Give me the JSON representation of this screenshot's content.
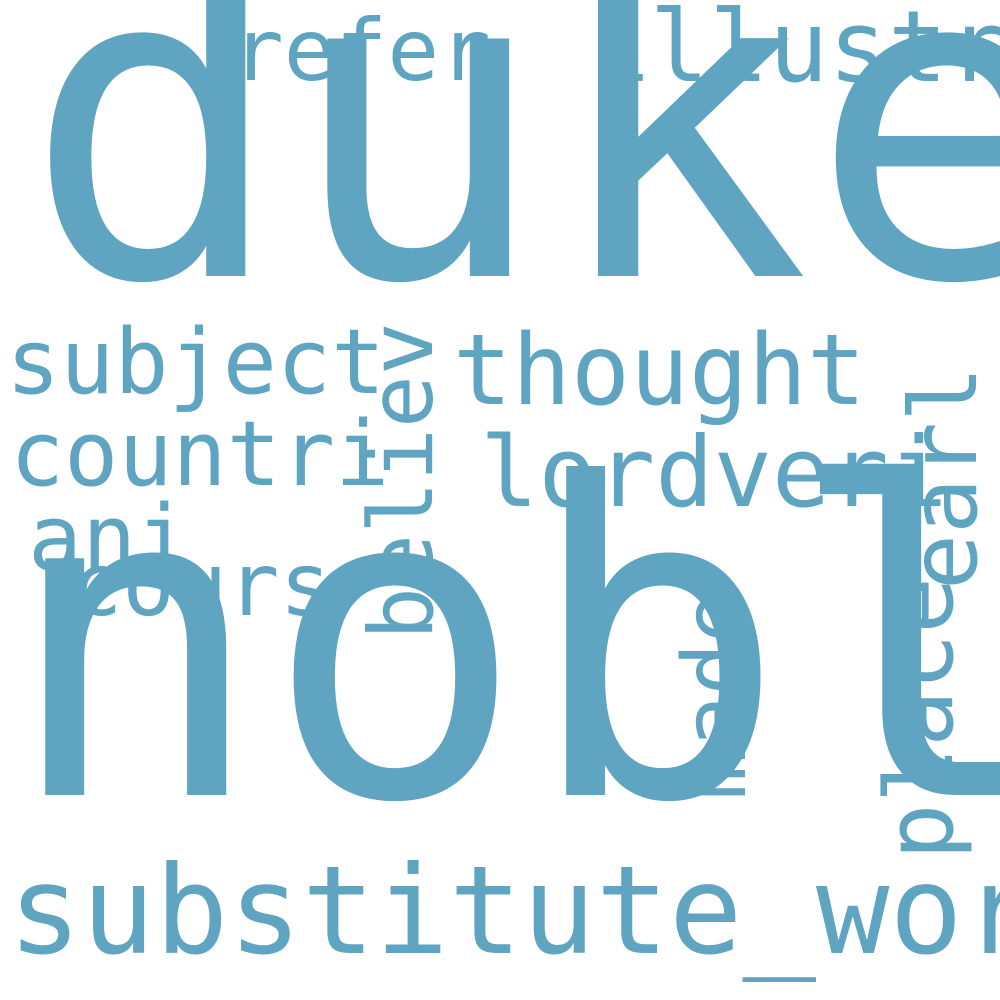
{
  "colors": {
    "background": "#ffffff",
    "word": "#5fa4c0"
  },
  "words": {
    "duke": "duke",
    "nobl": "nobl",
    "substitute_word": "substitute_word",
    "illustri": "illustri",
    "refer": "refer",
    "subject": "subject",
    "thought": "thought",
    "countri": "countri",
    "lordveri": "lordveri",
    "ani": "ani",
    "cours": "cours",
    "believ": "believ",
    "earl": "earl",
    "made": "made",
    "place": "place"
  }
}
